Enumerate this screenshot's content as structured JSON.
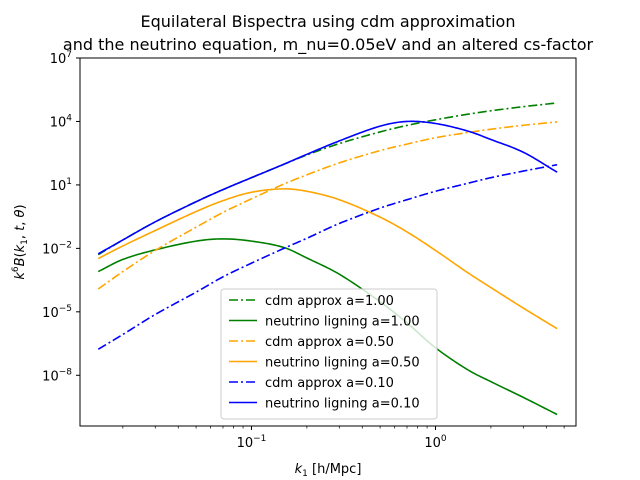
{
  "chart_data": {
    "type": "line",
    "title_lines": [
      "Equilateral Bispectra using cdm approximation",
      "and the neutrino equation, m_nu=0.05eV and an altered cs-factor"
    ],
    "xlabel": "k_1 [h/Mpc]",
    "ylabel": "k^6 B(k_1, t, θ)",
    "xscale": "log",
    "yscale": "log",
    "xlim": [
      0.0117,
      5.8
    ],
    "ylim": [
      4e-11,
      10000000.0
    ],
    "x_ticks": [
      {
        "value": 0.1,
        "base": "10",
        "exp": "−1"
      },
      {
        "value": 1,
        "base": "10",
        "exp": "0"
      }
    ],
    "y_ticks": [
      {
        "value": 1e-08,
        "base": "10",
        "exp": "−8"
      },
      {
        "value": 1e-05,
        "base": "10",
        "exp": "−5"
      },
      {
        "value": 0.01,
        "base": "10",
        "exp": "−2"
      },
      {
        "value": 10,
        "base": "10",
        "exp": "1"
      },
      {
        "value": 10000.0,
        "base": "10",
        "exp": "4"
      },
      {
        "value": 10000000.0,
        "base": "10",
        "exp": "7"
      }
    ],
    "legend_position": "lower center",
    "grid": false,
    "series": [
      {
        "name": "cdm approx a=1.00",
        "color": "#008000",
        "dash": "dashdot",
        "x": [
          0.0147,
          0.02,
          0.03,
          0.05,
          0.07,
          0.1,
          0.15,
          0.2,
          0.3,
          0.5,
          0.7,
          1.0,
          1.5,
          2.0,
          3.0,
          4.58
        ],
        "y": [
          0.005,
          0.025,
          0.18,
          1.6,
          6.0,
          22,
          95,
          260,
          900,
          3200,
          6500,
          12000,
          22000,
          32000,
          50000,
          75000
        ]
      },
      {
        "name": "neutrino ligning a=1.00",
        "color": "#008000",
        "dash": "solid",
        "x": [
          0.0147,
          0.02,
          0.03,
          0.05,
          0.07,
          0.1,
          0.15,
          0.2,
          0.3,
          0.5,
          0.7,
          1.0,
          1.5,
          2.0,
          3.0,
          4.58
        ],
        "y": [
          0.0008,
          0.003,
          0.0085,
          0.022,
          0.028,
          0.022,
          0.011,
          0.0035,
          0.0006,
          3e-05,
          3e-06,
          2e-07,
          1.8e-08,
          5e-09,
          9e-10,
          1.4e-10
        ]
      },
      {
        "name": "cdm approx a=0.50",
        "color": "#FFA500",
        "dash": "dashdot",
        "x": [
          0.0147,
          0.02,
          0.03,
          0.05,
          0.07,
          0.1,
          0.15,
          0.2,
          0.3,
          0.5,
          0.7,
          1.0,
          1.5,
          2.0,
          3.0,
          4.58
        ],
        "y": [
          0.00012,
          0.0008,
          0.008,
          0.1,
          0.5,
          2.2,
          11,
          30,
          110,
          420,
          850,
          1700,
          3000,
          4300,
          6600,
          9500
        ]
      },
      {
        "name": "neutrino ligning a=0.50",
        "color": "#FFA500",
        "dash": "solid",
        "x": [
          0.0147,
          0.02,
          0.03,
          0.05,
          0.07,
          0.1,
          0.15,
          0.2,
          0.3,
          0.5,
          0.7,
          1.0,
          1.5,
          2.0,
          3.0,
          4.58
        ],
        "y": [
          0.0033,
          0.013,
          0.07,
          0.55,
          1.8,
          4.5,
          6.5,
          5.0,
          2.0,
          0.3,
          0.06,
          0.008,
          0.0007,
          0.00014,
          1.5e-05,
          1.6e-06
        ]
      },
      {
        "name": "cdm approx a=0.10",
        "color": "#0000FF",
        "dash": "dashdot",
        "x": [
          0.0147,
          0.02,
          0.03,
          0.05,
          0.07,
          0.1,
          0.15,
          0.2,
          0.3,
          0.5,
          0.7,
          1.0,
          1.5,
          2.0,
          3.0,
          4.58
        ],
        "y": [
          1.7e-07,
          8.5e-07,
          7.5e-06,
          8.5e-05,
          0.00045,
          0.002,
          0.01,
          0.03,
          0.15,
          0.8,
          2.0,
          5.0,
          12,
          22,
          45,
          90
        ]
      },
      {
        "name": "neutrino ligning a=0.10",
        "color": "#0000FF",
        "dash": "solid",
        "x": [
          0.0147,
          0.02,
          0.03,
          0.05,
          0.07,
          0.1,
          0.15,
          0.2,
          0.3,
          0.5,
          0.7,
          1.0,
          1.5,
          2.0,
          3.0,
          4.58
        ],
        "y": [
          0.0055,
          0.025,
          0.18,
          1.6,
          6.0,
          22,
          95,
          280,
          1200,
          6000,
          10000,
          8000,
          3500,
          1400,
          350,
          40
        ]
      }
    ]
  }
}
